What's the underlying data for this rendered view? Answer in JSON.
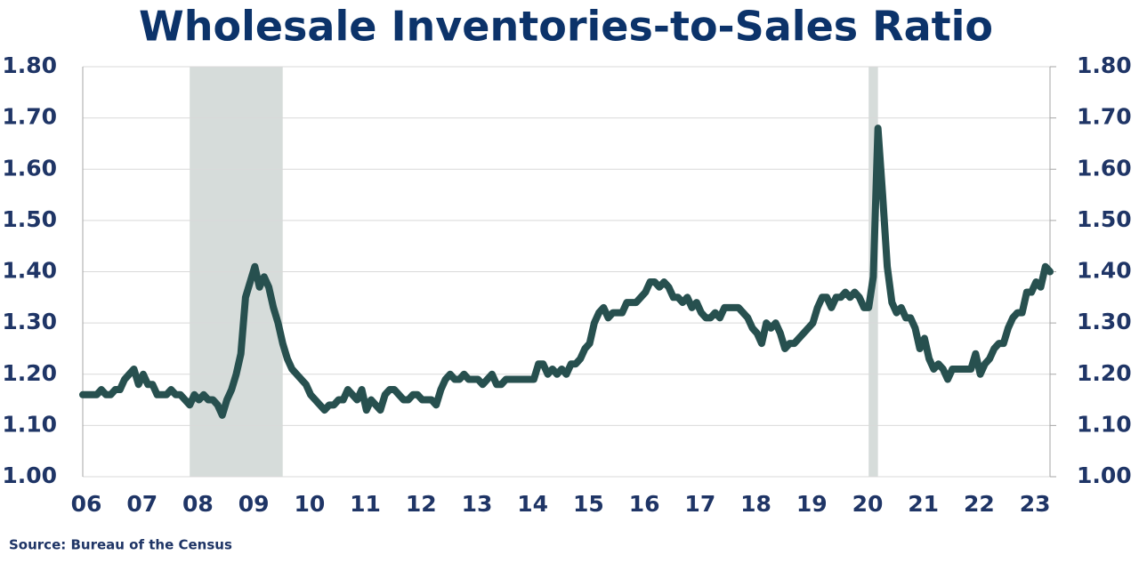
{
  "chart_data": {
    "type": "line",
    "title": "Wholesale Inventories-to-Sales Ratio",
    "source": "Source: Bureau of the Census",
    "categories": [
      "06",
      null,
      null,
      null,
      null,
      null,
      null,
      null,
      null,
      null,
      null,
      null,
      "07",
      null,
      null,
      null,
      null,
      null,
      null,
      null,
      null,
      null,
      null,
      null,
      "08",
      null,
      null,
      null,
      null,
      null,
      null,
      null,
      null,
      null,
      null,
      null,
      "09",
      null,
      null,
      null,
      null,
      null,
      null,
      null,
      null,
      null,
      null,
      null,
      "10",
      null,
      null,
      null,
      null,
      null,
      null,
      null,
      null,
      null,
      null,
      null,
      "11",
      null,
      null,
      null,
      null,
      null,
      null,
      null,
      null,
      null,
      null,
      null,
      "12",
      null,
      null,
      null,
      null,
      null,
      null,
      null,
      null,
      null,
      null,
      null,
      "13",
      null,
      null,
      null,
      null,
      null,
      null,
      null,
      null,
      null,
      null,
      null,
      "14",
      null,
      null,
      null,
      null,
      null,
      null,
      null,
      null,
      null,
      null,
      null,
      "15",
      null,
      null,
      null,
      null,
      null,
      null,
      null,
      null,
      null,
      null,
      null,
      "16",
      null,
      null,
      null,
      null,
      null,
      null,
      null,
      null,
      null,
      null,
      null,
      "17",
      null,
      null,
      null,
      null,
      null,
      null,
      null,
      null,
      null,
      null,
      null,
      "18",
      null,
      null,
      null,
      null,
      null,
      null,
      null,
      null,
      null,
      null,
      null,
      "19",
      null,
      null,
      null,
      null,
      null,
      null,
      null,
      null,
      null,
      null,
      null,
      "20",
      null,
      null,
      null,
      null,
      null,
      null,
      null,
      null,
      null,
      null,
      null,
      "21",
      null,
      null,
      null,
      null,
      null,
      null,
      null,
      null,
      null,
      null,
      null,
      "22",
      null,
      null,
      null,
      null,
      null,
      null,
      null,
      null,
      null,
      null,
      null,
      "23",
      null,
      null,
      null,
      null
    ],
    "values": [
      1.16,
      1.16,
      1.16,
      1.16,
      1.17,
      1.16,
      1.16,
      1.17,
      1.17,
      1.19,
      1.2,
      1.21,
      1.18,
      1.2,
      1.18,
      1.18,
      1.16,
      1.16,
      1.16,
      1.17,
      1.16,
      1.16,
      1.15,
      1.14,
      1.16,
      1.15,
      1.16,
      1.15,
      1.15,
      1.14,
      1.12,
      1.15,
      1.17,
      1.2,
      1.24,
      1.35,
      1.38,
      1.41,
      1.37,
      1.39,
      1.37,
      1.33,
      1.3,
      1.26,
      1.23,
      1.21,
      1.2,
      1.19,
      1.18,
      1.16,
      1.15,
      1.14,
      1.13,
      1.14,
      1.14,
      1.15,
      1.15,
      1.17,
      1.16,
      1.15,
      1.17,
      1.13,
      1.15,
      1.14,
      1.13,
      1.16,
      1.17,
      1.17,
      1.16,
      1.15,
      1.15,
      1.16,
      1.16,
      1.15,
      1.15,
      1.15,
      1.14,
      1.17,
      1.19,
      1.2,
      1.19,
      1.19,
      1.2,
      1.19,
      1.19,
      1.19,
      1.18,
      1.19,
      1.2,
      1.18,
      1.18,
      1.19,
      1.19,
      1.19,
      1.19,
      1.19,
      1.19,
      1.19,
      1.22,
      1.22,
      1.2,
      1.21,
      1.2,
      1.21,
      1.2,
      1.22,
      1.22,
      1.23,
      1.25,
      1.26,
      1.3,
      1.32,
      1.33,
      1.31,
      1.32,
      1.32,
      1.32,
      1.34,
      1.34,
      1.34,
      1.35,
      1.36,
      1.38,
      1.38,
      1.37,
      1.38,
      1.37,
      1.35,
      1.35,
      1.34,
      1.35,
      1.33,
      1.34,
      1.32,
      1.31,
      1.31,
      1.32,
      1.31,
      1.33,
      1.33,
      1.33,
      1.33,
      1.32,
      1.31,
      1.29,
      1.28,
      1.26,
      1.3,
      1.29,
      1.3,
      1.28,
      1.25,
      1.26,
      1.26,
      1.27,
      1.28,
      1.29,
      1.3,
      1.33,
      1.35,
      1.35,
      1.33,
      1.35,
      1.35,
      1.36,
      1.35,
      1.36,
      1.35,
      1.33,
      1.33,
      1.39,
      1.68,
      1.55,
      1.41,
      1.34,
      1.32,
      1.33,
      1.31,
      1.31,
      1.29,
      1.25,
      1.27,
      1.23,
      1.21,
      1.22,
      1.21,
      1.19,
      1.21,
      1.21,
      1.21,
      1.21,
      1.21,
      1.24,
      1.2,
      1.22,
      1.23,
      1.25,
      1.26,
      1.26,
      1.29,
      1.31,
      1.32,
      1.32,
      1.36,
      1.36,
      1.38,
      1.37,
      1.41,
      1.4
    ],
    "color": "#27504f",
    "shaded_color": "#d6dcda",
    "shaded_periods": [
      [
        23,
        43
      ],
      [
        169,
        171
      ]
    ],
    "ylim": [
      1.0,
      1.8
    ],
    "yticks": [
      {
        "value": 1.0,
        "label": "1.00"
      },
      {
        "value": 1.1,
        "label": "1.10"
      },
      {
        "value": 1.2,
        "label": "1.20"
      },
      {
        "value": 1.3,
        "label": "1.30"
      },
      {
        "value": 1.4,
        "label": "1.40"
      },
      {
        "value": 1.5,
        "label": "1.50"
      },
      {
        "value": 1.6,
        "label": "1.60"
      },
      {
        "value": 1.7,
        "label": "1.70"
      },
      {
        "value": 1.8,
        "label": "1.80"
      }
    ],
    "grid": true
  }
}
